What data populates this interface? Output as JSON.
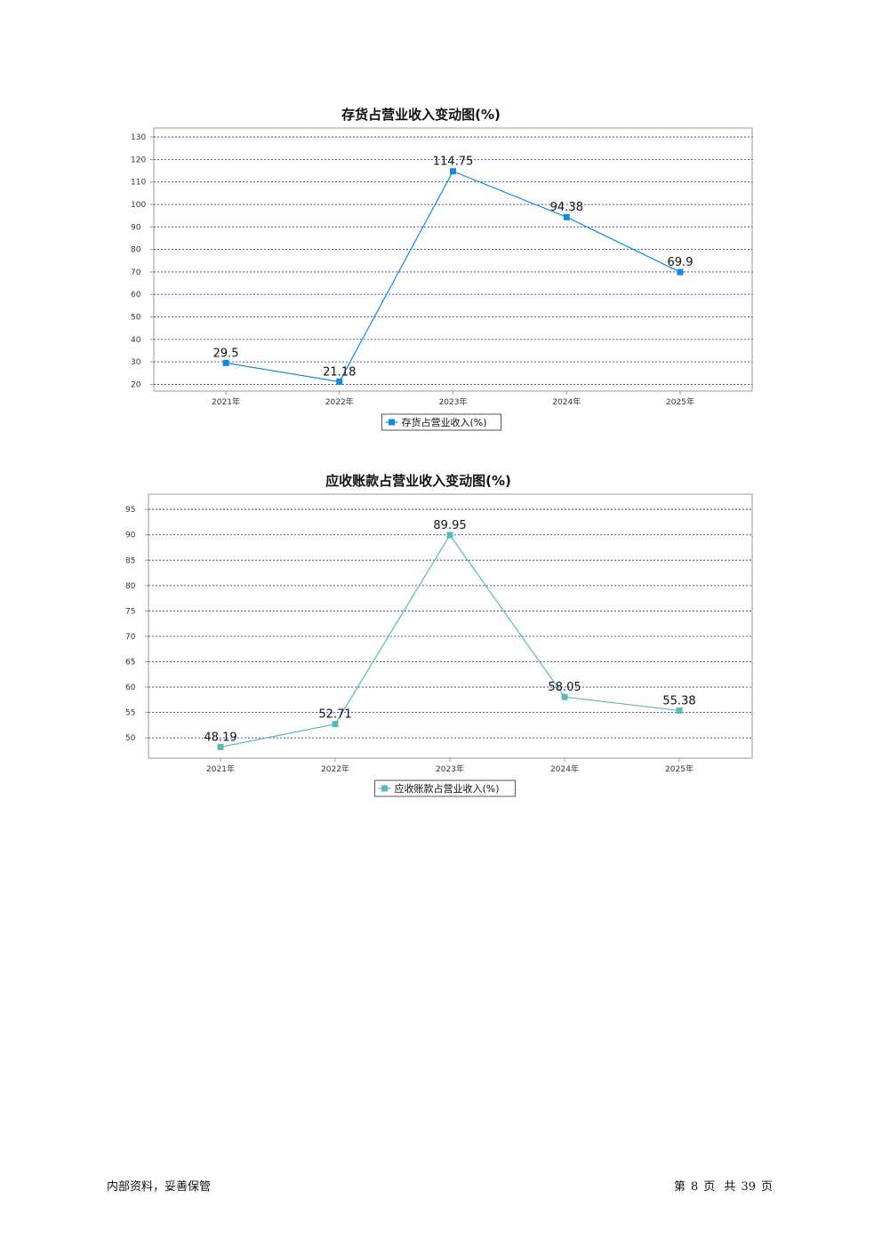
{
  "chart_data": [
    {
      "type": "line",
      "title": "存货占营业收入变动图(%)",
      "categories": [
        "2021年",
        "2022年",
        "2023年",
        "2024年",
        "2025年"
      ],
      "series": [
        {
          "name": "存货占营业收入(%)",
          "values": [
            29.5,
            21.18,
            114.75,
            94.38,
            69.9
          ],
          "value_labels": [
            "29.5",
            "21.18",
            "114.75",
            "94.38",
            "69.9"
          ],
          "color": "#0f8ae0"
        }
      ],
      "ylim": [
        17,
        134
      ],
      "yticks": [
        20,
        30,
        40,
        50,
        60,
        70,
        80,
        90,
        100,
        110,
        120,
        130
      ],
      "grid": true,
      "legend": "bottom-center"
    },
    {
      "type": "line",
      "title": "应收账款占营业收入变动图(%)",
      "categories": [
        "2021年",
        "2022年",
        "2023年",
        "2024年",
        "2025年"
      ],
      "series": [
        {
          "name": "应收账款占营业收入(%)",
          "values": [
            48.19,
            52.71,
            89.95,
            58.05,
            55.38
          ],
          "value_labels": [
            "48.19",
            "52.71",
            "89.95",
            "58.05",
            "55.38"
          ],
          "color": "#5ab8b8"
        }
      ],
      "ylim": [
        46,
        98
      ],
      "yticks": [
        50,
        55,
        60,
        65,
        70,
        75,
        80,
        85,
        90,
        95
      ],
      "grid": true,
      "legend": "bottom-center"
    }
  ],
  "footer": {
    "left_text": "内部资料，妥善保管",
    "page_prefix": "第",
    "page_number": "8",
    "page_mid": "页",
    "total_prefix": "共",
    "total_pages": "39",
    "total_suffix": "页"
  }
}
